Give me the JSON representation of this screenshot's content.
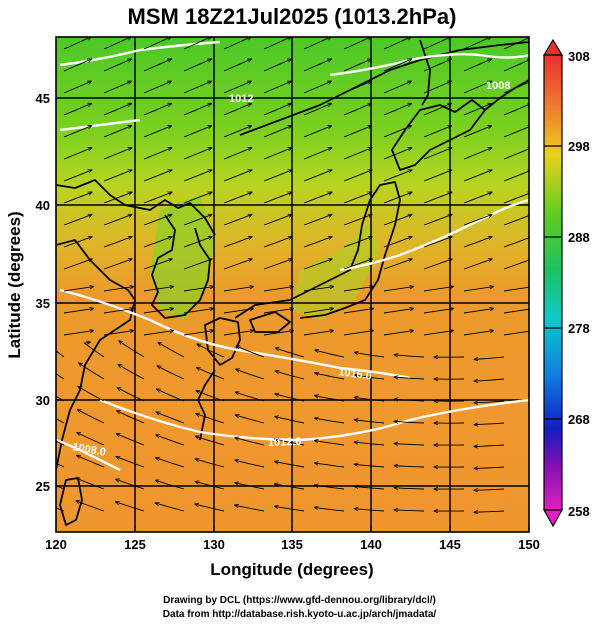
{
  "title": "MSM 18Z21Jul2025 (1013.2hPa)",
  "xaxis": {
    "label": "Longitude (degrees)",
    "min": 120,
    "max": 150,
    "ticks": [
      "120",
      "125",
      "130",
      "135",
      "140",
      "145",
      "150"
    ]
  },
  "yaxis": {
    "label": "Latitude  (degrees)",
    "min": 22.4,
    "max": 47.6,
    "ticks": [
      "25",
      "30",
      "35",
      "40",
      "45"
    ]
  },
  "colorbar": {
    "min": 258,
    "max": 308,
    "labels": [
      "308",
      "298",
      "288",
      "278",
      "268",
      "258"
    ]
  },
  "contours": [
    {
      "label": "1016.0"
    },
    {
      "label": "1012.0"
    },
    {
      "label": "1008.0"
    },
    {
      "label": "1012"
    },
    {
      "label": "1008"
    }
  ],
  "credits": {
    "line1": "Drawing by DCL (https://www.gfd-dennou.org/library/dcl/)",
    "line2": "Data from http://database.rish.kyoto-u.ac.jp/arch/jmadata/"
  },
  "colors": {
    "warm": "#f0a030",
    "orange": "#e88a2a",
    "yellow": "#d8d020",
    "green": "#5ccc20",
    "grid": "#000000",
    "contour": "#ffffff"
  }
}
